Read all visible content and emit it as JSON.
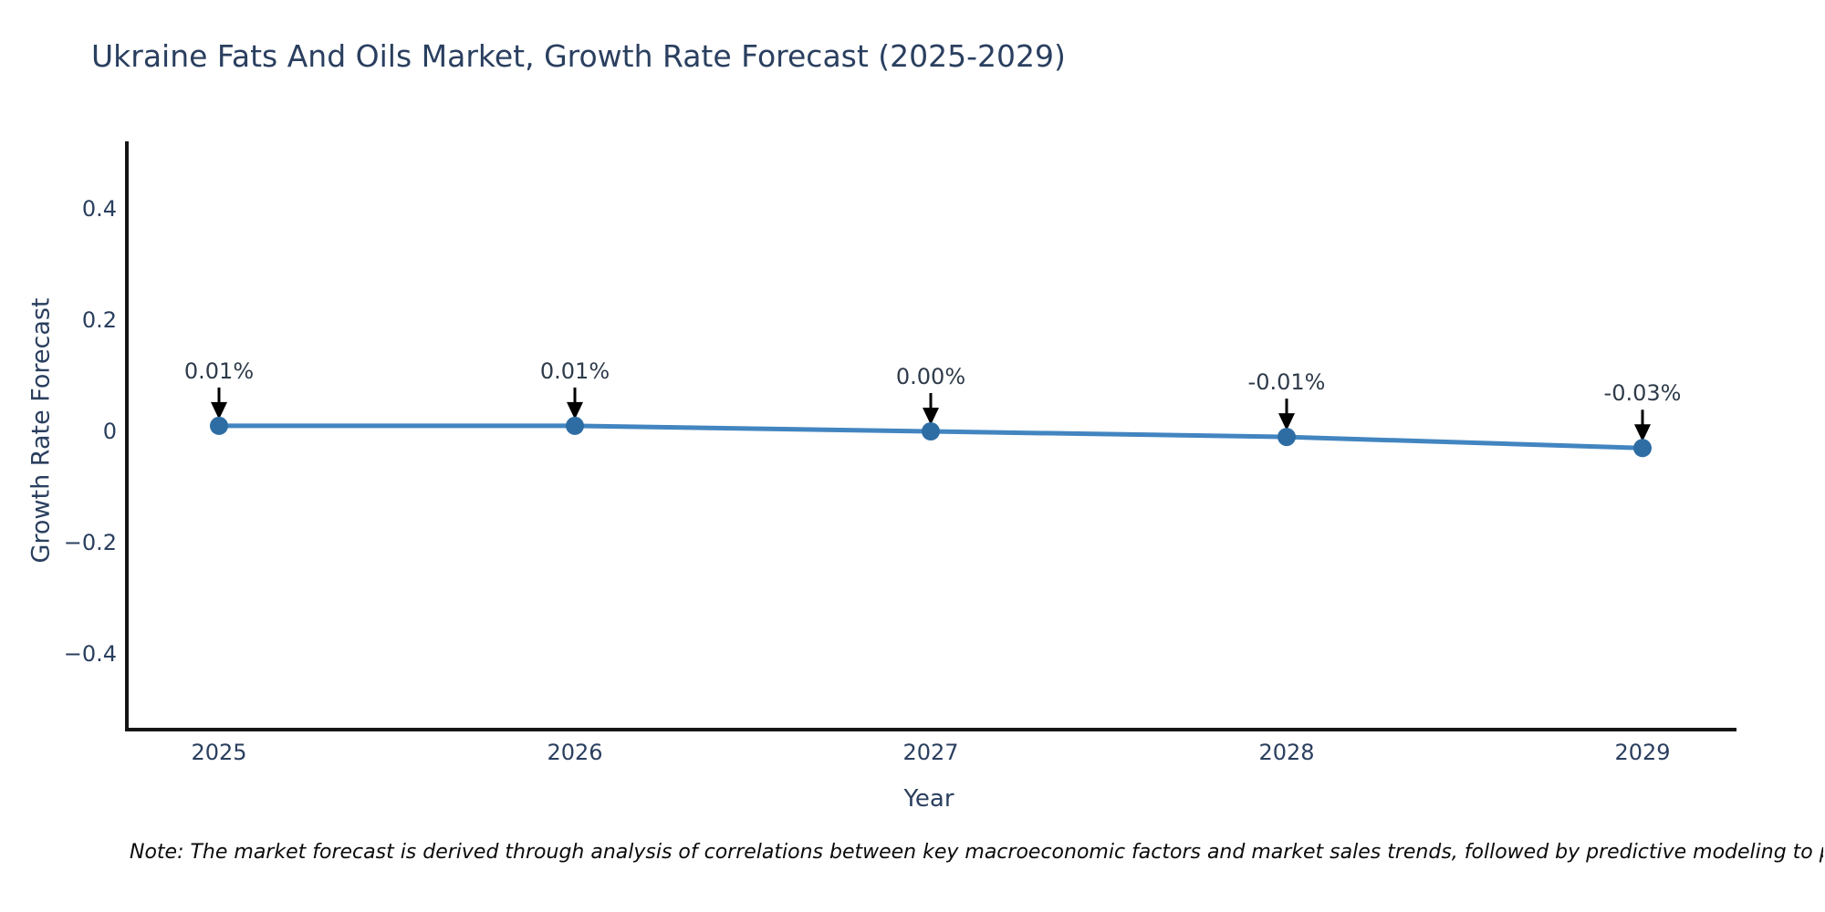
{
  "title": "Ukraine Fats And Oils Market, Growth Rate Forecast (2025-2029)",
  "note_text": "Note: The market forecast is derived through analysis of correlations between key macroeconomic factors and market sales trends, followed by predictive modeling to project future sales",
  "colors": {
    "text": "#2a3f5f",
    "axis_line": "#151515",
    "series_line": "#4285c0",
    "marker_fill": "#2e6da4",
    "arrow": "#000000",
    "background": "#ffffff"
  },
  "chart_data": {
    "type": "line",
    "title": "Ukraine Fats And Oils Market, Growth Rate Forecast (2025-2029)",
    "xlabel": "Year",
    "ylabel": "Growth Rate Forecast",
    "x": [
      2025,
      2026,
      2027,
      2028,
      2029
    ],
    "series": [
      {
        "name": "Growth Rate Forecast",
        "values": [
          0.01,
          0.01,
          0.0,
          -0.01,
          -0.03
        ],
        "point_labels": [
          "0.01%",
          "0.01%",
          "0.00%",
          "-0.01%",
          "-0.03%"
        ]
      }
    ],
    "ytick_values": [
      0.4,
      0.2,
      0,
      -0.2,
      -0.4
    ],
    "ytick_labels": [
      "0.4",
      "0.2",
      "0",
      "−0.2",
      "−0.4"
    ],
    "ylim": [
      -0.54,
      0.52
    ],
    "grid": false,
    "legend_position": "none",
    "marker_style": "circle",
    "annotation_arrows": "down"
  }
}
